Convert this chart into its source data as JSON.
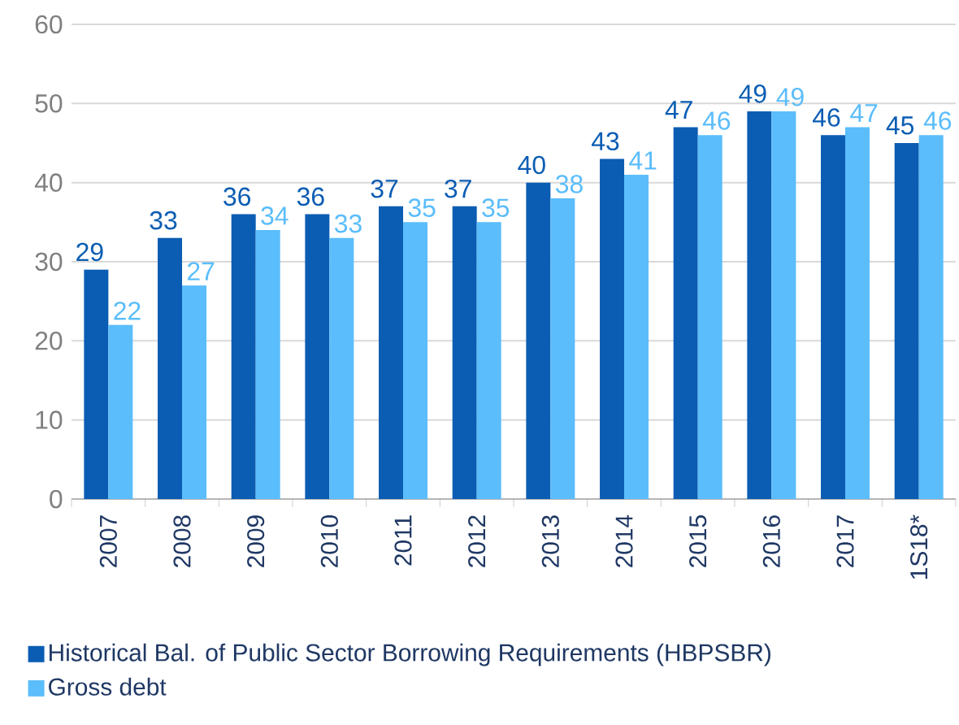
{
  "chart_data": {
    "type": "bar",
    "categories": [
      "2007",
      "2008",
      "2009",
      "2010",
      "2011",
      "2012",
      "2013",
      "2014",
      "2015",
      "2016",
      "2017",
      "1S18*"
    ],
    "series": [
      {
        "name": "Historical Bal. of Public Sector Borrowing Requirements (HBPSBR)",
        "color": "#0b5db3",
        "values": [
          29,
          33,
          36,
          36,
          37,
          37,
          40,
          43,
          47,
          49,
          46,
          45
        ]
      },
      {
        "name": "Gross debt",
        "color": "#5bbdfb",
        "values": [
          22,
          27,
          34,
          33,
          35,
          35,
          38,
          41,
          46,
          49,
          47,
          46
        ]
      }
    ],
    "ylim": [
      0,
      60
    ],
    "yticks": [
      0,
      10,
      20,
      30,
      40,
      50,
      60
    ],
    "grid": "y",
    "legend": "bottom",
    "data_labels": true
  }
}
